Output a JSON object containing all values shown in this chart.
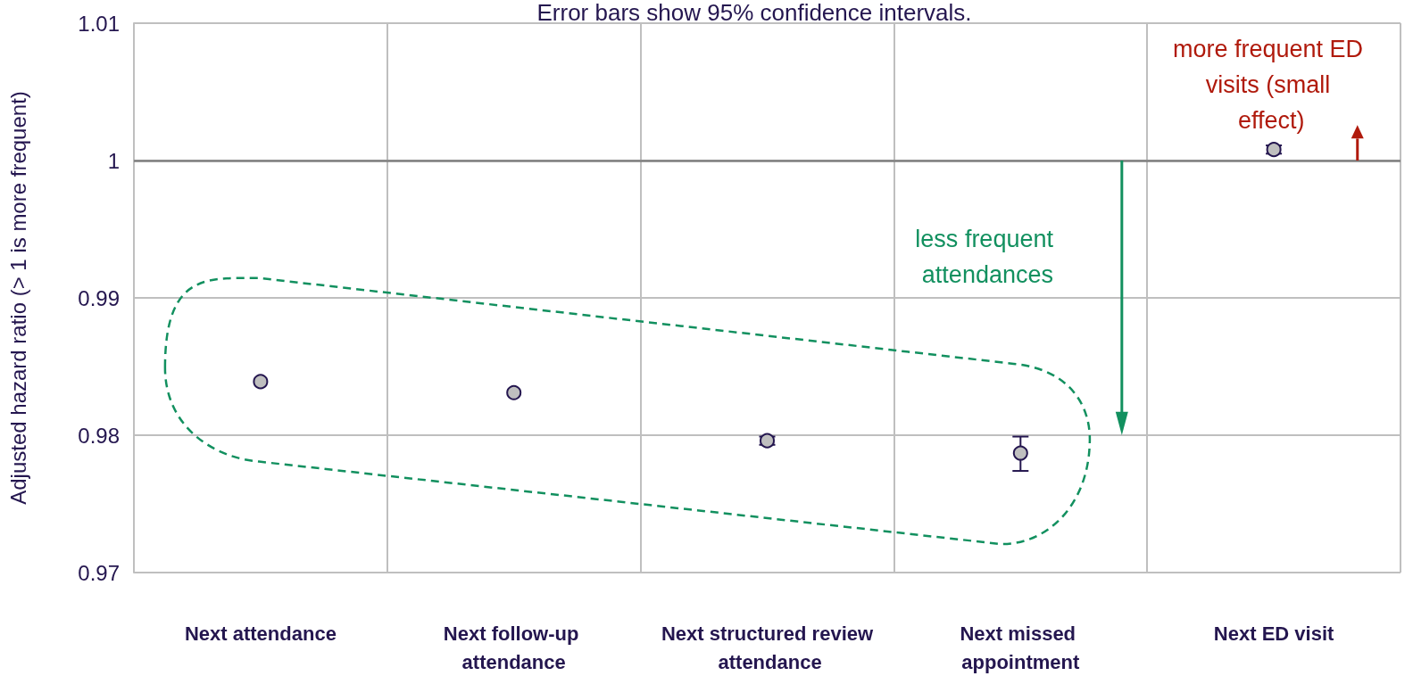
{
  "chart_data": {
    "type": "scatter",
    "title": "Error bars show 95% confidence intervals.",
    "ylabel": "Adjusted hazard ratio (> 1 is more frequent)",
    "categories": [
      "Next attendance",
      "Next follow-up attendance",
      "Next structured review attendance",
      "Next missed appointment",
      "Next ED visit"
    ],
    "series": [
      {
        "color": "#bfbfbf",
        "values": [
          0.9839,
          0.9831,
          0.9796,
          0.9787,
          1.0008
        ],
        "errors": [
          null,
          null,
          [
            0.9793,
            0.9799
          ],
          [
            0.9774,
            0.9799
          ],
          [
            1.0005,
            1.0011
          ]
        ]
      }
    ],
    "ylim": [
      0.97,
      1.01
    ],
    "yticks": [
      0.97,
      0.98,
      0.99,
      1,
      1.01
    ],
    "ref_lines": [
      {
        "axis": "y",
        "value": 1,
        "color": "#808080"
      }
    ],
    "annotations": [
      "less frequent attendances",
      "more frequent ED visits (small effect)"
    ],
    "grid": true,
    "marker": "circle"
  }
}
